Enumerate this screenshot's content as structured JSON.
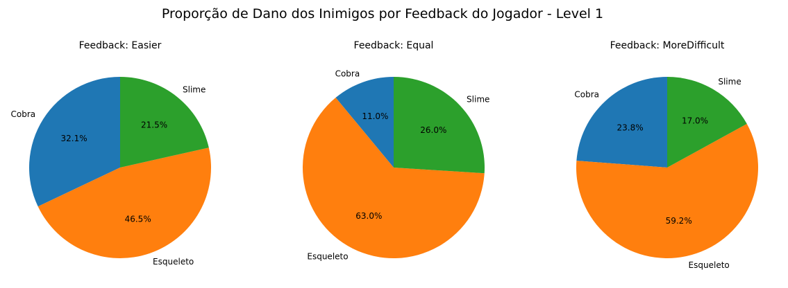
{
  "chart_data": {
    "type": "pie",
    "title": "Proporção de Dano dos Inimigos por Feedback do Jogador - Level 1",
    "colors": {
      "Cobra": "#1f77b4",
      "Esqueleto": "#ff7f0e",
      "Slime": "#2ca02c"
    },
    "charts": [
      {
        "title": "Feedback: Easier",
        "categories": [
          "Cobra",
          "Esqueleto",
          "Slime"
        ],
        "values": [
          32.1,
          46.5,
          21.5
        ],
        "value_labels": [
          "32.1%",
          "46.5%",
          "21.5%"
        ]
      },
      {
        "title": "Feedback: Equal",
        "categories": [
          "Cobra",
          "Esqueleto",
          "Slime"
        ],
        "values": [
          11.0,
          63.0,
          26.0
        ],
        "value_labels": [
          "11.0%",
          "63.0%",
          "26.0%"
        ]
      },
      {
        "title": "Feedback: MoreDifficult",
        "categories": [
          "Cobra",
          "Esqueleto",
          "Slime"
        ],
        "values": [
          23.8,
          59.2,
          17.0
        ],
        "value_labels": [
          "23.8%",
          "59.2%",
          "17.0%"
        ]
      }
    ]
  }
}
